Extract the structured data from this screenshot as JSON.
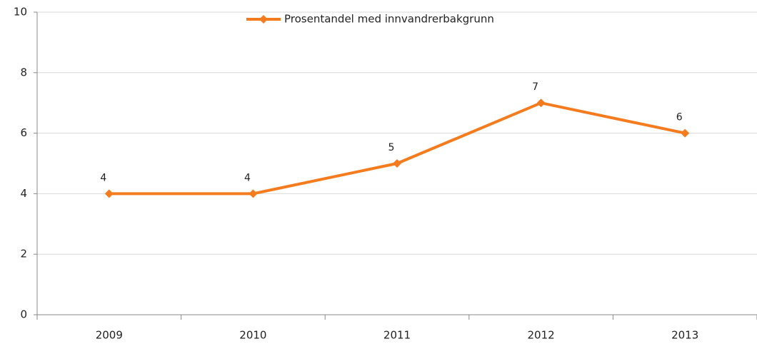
{
  "chart_data": {
    "type": "line",
    "categories": [
      "2009",
      "2010",
      "2011",
      "2012",
      "2013"
    ],
    "series": [
      {
        "name": "Prosentandel med innvandrerbakgrunn",
        "color": "#f47c1e",
        "values": [
          4,
          4,
          5,
          7,
          6
        ]
      }
    ],
    "ylim": [
      0,
      10
    ],
    "yticks": [
      0,
      2,
      4,
      6,
      8,
      10
    ],
    "grid": true,
    "legend": "top"
  }
}
